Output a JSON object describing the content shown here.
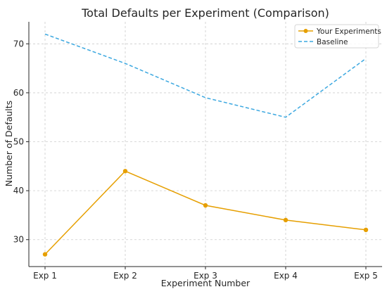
{
  "chart_data": {
    "type": "line",
    "title": "Total Defaults per Experiment (Comparison)",
    "xlabel": "Experiment Number",
    "ylabel": "Number of Defaults",
    "categories": [
      "Exp 1",
      "Exp 2",
      "Exp 3",
      "Exp 4",
      "Exp 5"
    ],
    "ylim": [
      24.5,
      74.5
    ],
    "yticks": [
      30,
      40,
      50,
      60,
      70
    ],
    "grid": true,
    "legend_position": "top-right",
    "series": [
      {
        "name": "Your Experiments",
        "values": [
          27,
          44,
          37,
          34,
          32
        ],
        "color": "#E69F00",
        "style": "solid",
        "marker": "circle"
      },
      {
        "name": "Baseline",
        "values": [
          72,
          66,
          59,
          55,
          67
        ],
        "color": "#3CA8E0",
        "style": "dashed",
        "marker": "none"
      }
    ]
  }
}
